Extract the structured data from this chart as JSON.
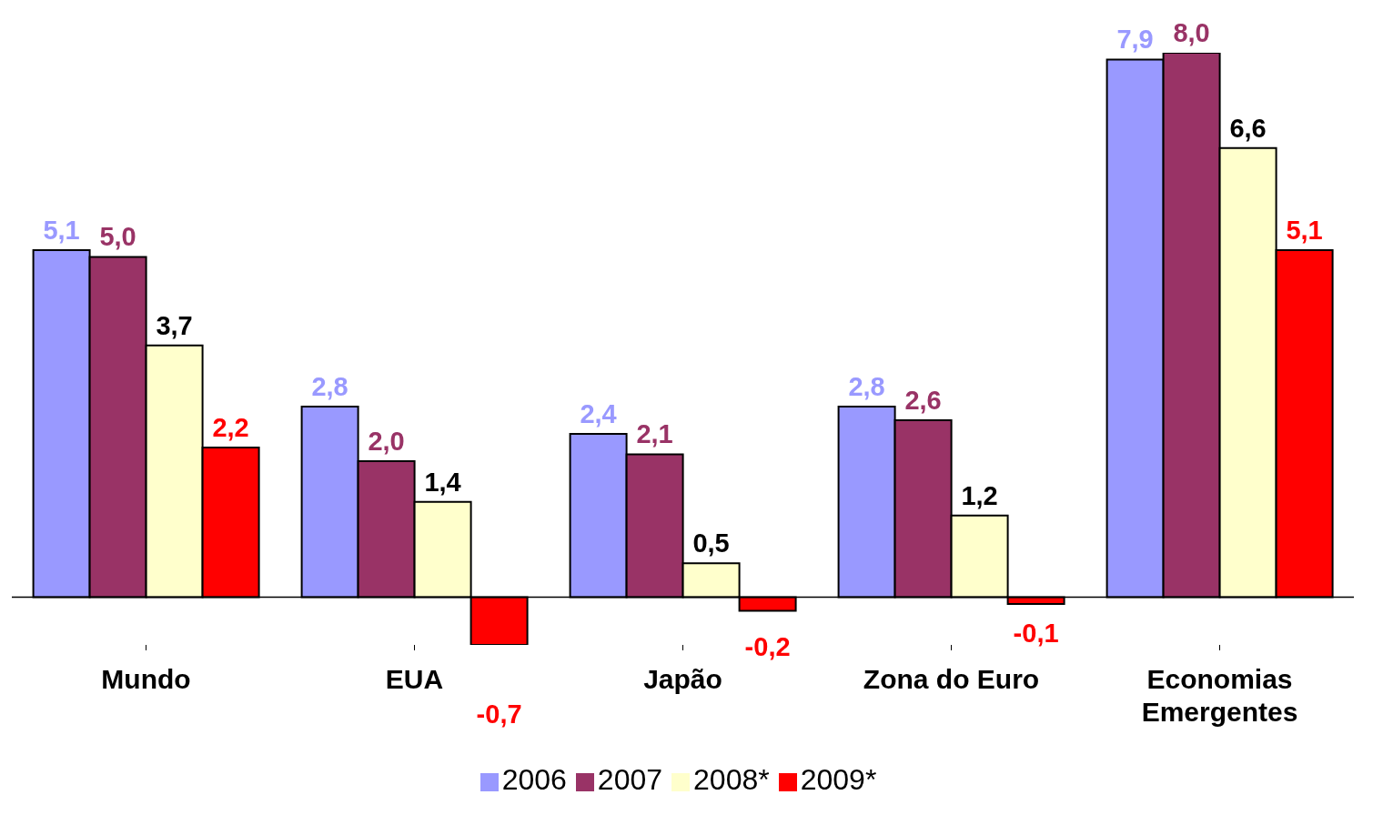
{
  "chart_data": {
    "type": "bar",
    "categories": [
      "Mundo",
      "EUA",
      "Japão",
      "Zona do Euro",
      "Economias Emergentes"
    ],
    "series": [
      {
        "name": "2006",
        "color": "#9999ff",
        "values": [
          5.1,
          2.8,
          2.4,
          2.8,
          7.9
        ],
        "value_labels": [
          "5,1",
          "2,8",
          "2,4",
          "2,8",
          "7,9"
        ]
      },
      {
        "name": "2007",
        "color": "#993366",
        "values": [
          5.0,
          2.0,
          2.1,
          2.6,
          8.0
        ],
        "value_labels": [
          "5,0",
          "2,0",
          "2,1",
          "2,6",
          "8,0"
        ]
      },
      {
        "name": "2008*",
        "color": "#ffffcc",
        "values": [
          3.7,
          1.4,
          0.5,
          1.2,
          6.6
        ],
        "value_labels": [
          "3,7",
          "1,4",
          "0,5",
          "1,2",
          "6,6"
        ]
      },
      {
        "name": "2009*",
        "color": "#ff0000",
        "values": [
          2.2,
          -0.7,
          -0.2,
          -0.1,
          5.1
        ],
        "value_labels": [
          "2,2",
          "-0,7",
          "-0,2",
          "-0,1",
          "5,1"
        ]
      }
    ],
    "legend": "bottom",
    "grid": false
  }
}
